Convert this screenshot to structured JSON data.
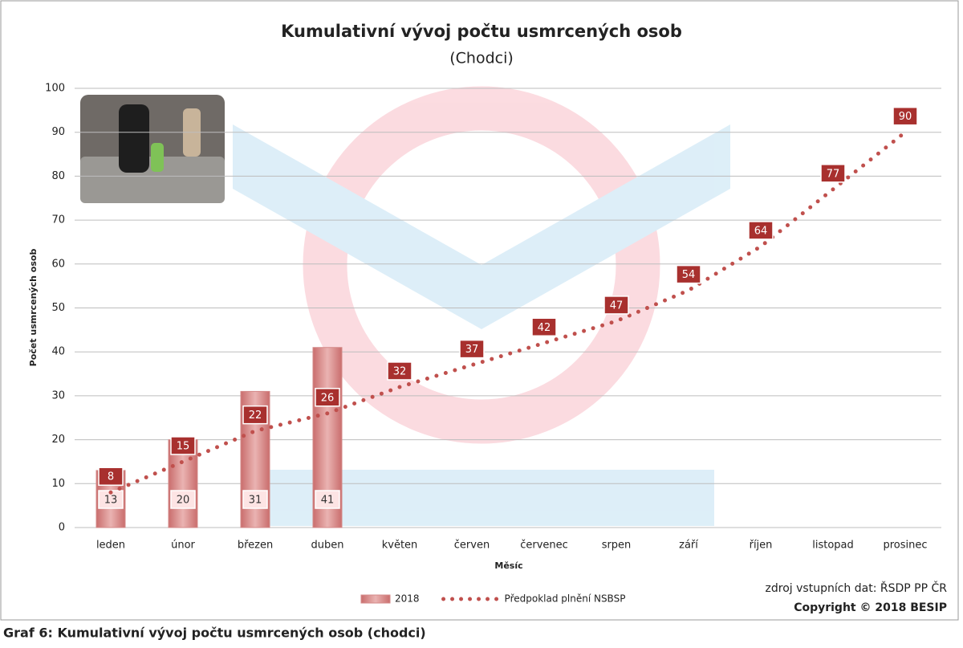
{
  "chart_data": {
    "type": "bar",
    "title": "Kumulativní vývoj počtu usmrcených osob",
    "subtitle": "(Chodci)",
    "y_label": "Počet usmrcených osob",
    "x_label": "Měsíc",
    "categories": [
      "leden",
      "únor",
      "březen",
      "duben",
      "květen",
      "červen",
      "červenec",
      "srpen",
      "září",
      "říjen",
      "listopad",
      "prosinec"
    ],
    "series": [
      {
        "name": "2018",
        "type": "bar",
        "color": "#d48a89",
        "values": [
          13,
          20,
          31,
          41,
          null,
          null,
          null,
          null,
          null,
          null,
          null,
          null
        ]
      },
      {
        "name": "Předpoklad plnění NSBSP",
        "type": "line",
        "color": "#c0504d",
        "values": [
          8,
          15,
          22,
          26,
          32,
          37,
          42,
          47,
          54,
          64,
          77,
          90
        ]
      }
    ],
    "ylim": [
      0,
      100
    ],
    "yticks": [
      0,
      10,
      20,
      30,
      40,
      50,
      60,
      70,
      80,
      90,
      100
    ],
    "grid": true,
    "legend": "bottom",
    "source": "zdroj vstupních dat: ŘSDP PP ČR",
    "copyright": "Copyright © 2018 BESIP",
    "caption": "Graf 6: Kumulativní vývoj počtu usmrcených osob (chodci)"
  }
}
